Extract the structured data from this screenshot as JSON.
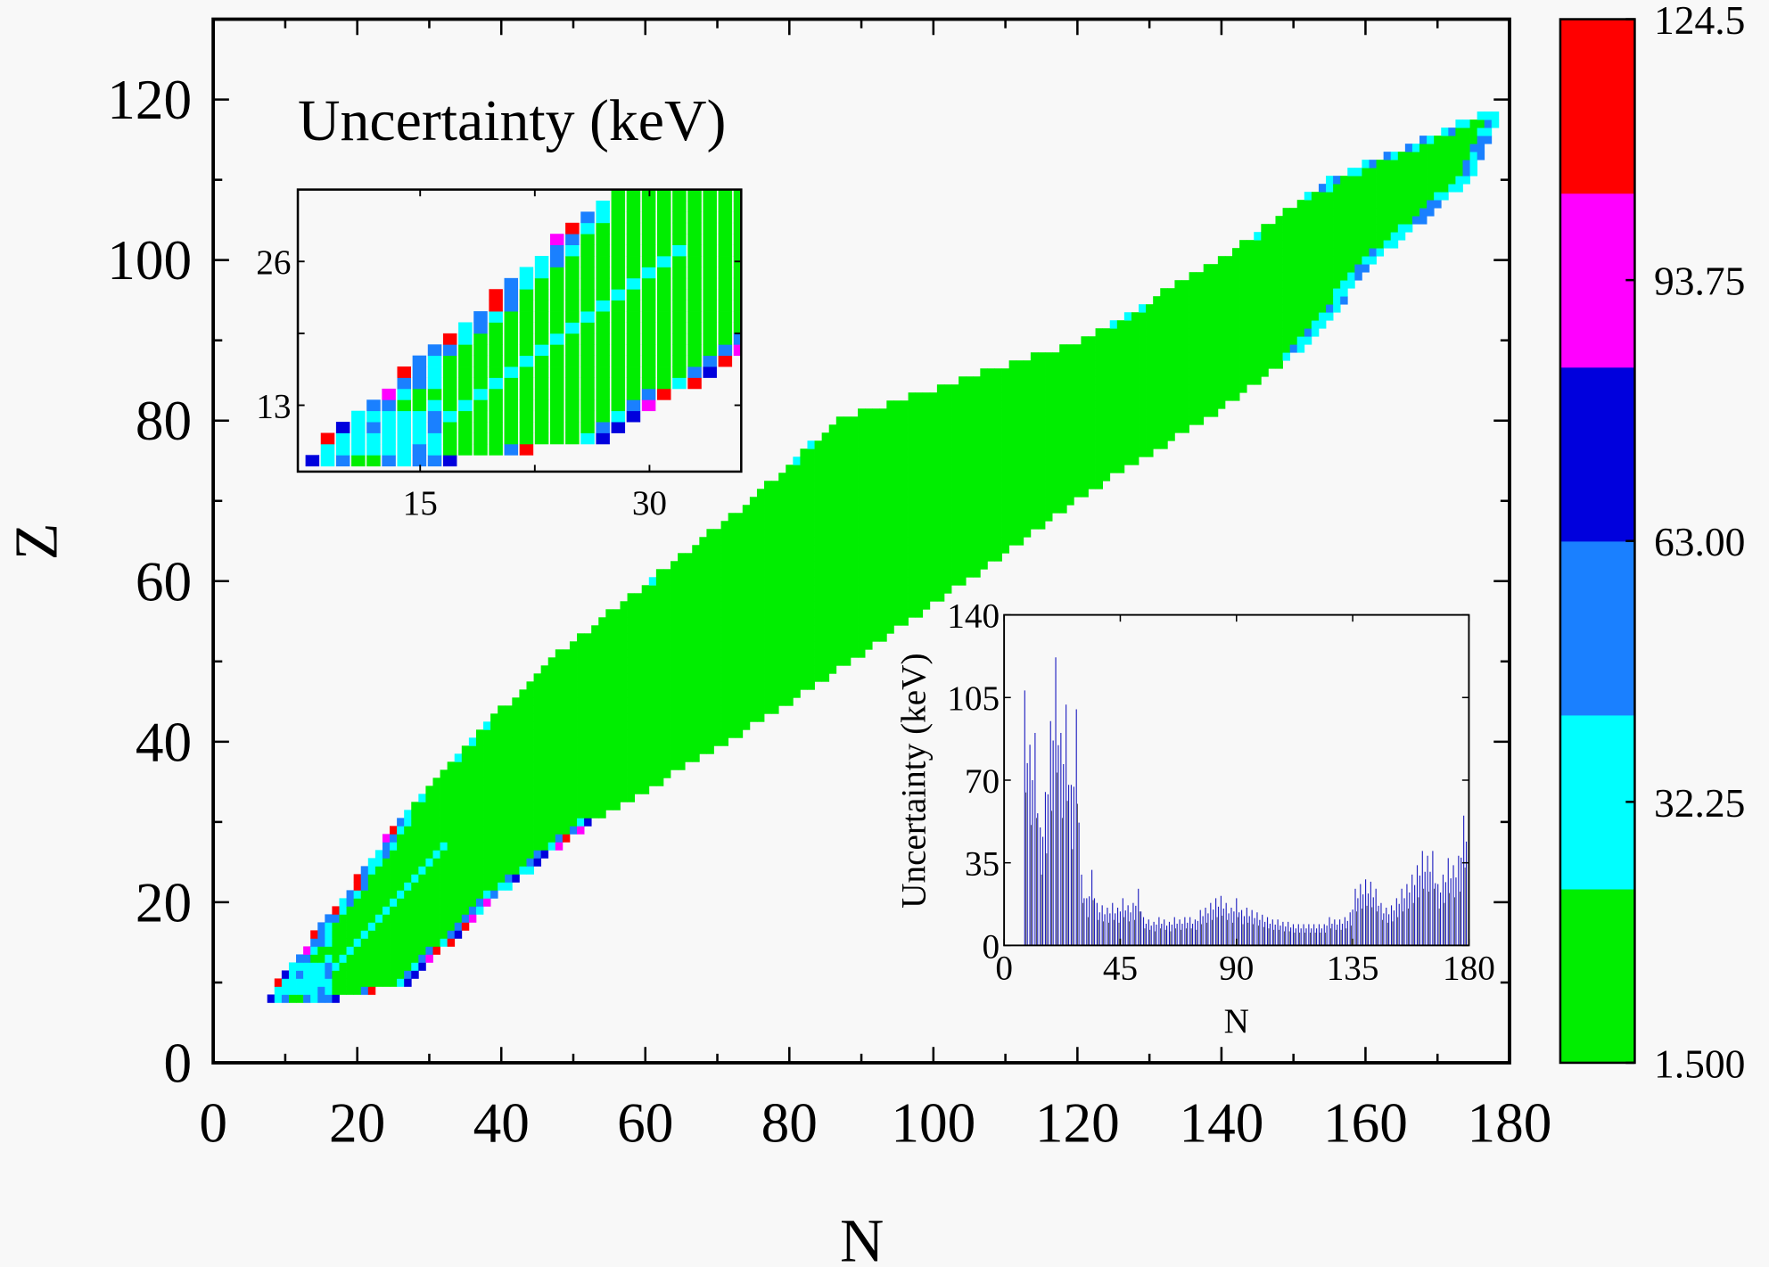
{
  "chart_data": [
    {
      "type": "heatmap",
      "title": "Uncertainty (keV)",
      "xlabel": "N",
      "ylabel": "Z",
      "xlim": [
        0,
        180
      ],
      "ylim": [
        0,
        130
      ],
      "xticks": [
        "0",
        "20",
        "40",
        "60",
        "80",
        "100",
        "120",
        "140",
        "160",
        "180"
      ],
      "yticks": [
        "0",
        "20",
        "40",
        "60",
        "80",
        "100",
        "120"
      ],
      "grid": false,
      "colorbar": {
        "range": [
          1.5,
          124.5
        ],
        "tick_labels": [
          "1.500",
          "32.25",
          "63.00",
          "93.75",
          "124.5"
        ],
        "tick_values": [
          1.5,
          32.25,
          63.0,
          93.75,
          124.5
        ],
        "colors": [
          "#00ee00",
          "#00ffff",
          "#1a80ff",
          "#0000dd",
          "#ff00ff",
          "#ff0000"
        ]
      },
      "region_edges": {
        "z": [
          8,
          10,
          20,
          30,
          40,
          50,
          60,
          70,
          80,
          90,
          100,
          110,
          118
        ],
        "n_min": [
          8,
          9,
          18,
          26,
          36,
          47,
          61,
          75,
          87,
          121,
          140,
          155,
          176
        ],
        "n_max": [
          17,
          27,
          38,
          52,
          71,
          88,
          104,
          119,
          137,
          152,
          161,
          174,
          178
        ]
      },
      "typical_value_keV": 10
    },
    {
      "type": "heatmap",
      "inset": "top-left",
      "xlim": [
        7,
        36
      ],
      "ylim": [
        7,
        32.5
      ],
      "xticks": [
        "15",
        "30"
      ],
      "yticks": [
        "13",
        "26"
      ]
    },
    {
      "type": "bar",
      "inset": "bottom-right",
      "xlabel": "N",
      "ylabel": "Uncertainty (keV)",
      "xlim": [
        0,
        180
      ],
      "ylim": [
        0,
        140
      ],
      "xticks": [
        "0",
        "45",
        "90",
        "135",
        "180"
      ],
      "yticks": [
        "0",
        "35",
        "70",
        "105",
        "140"
      ],
      "color": "#2020c0",
      "x": [
        8,
        10,
        12,
        14,
        16,
        18,
        20,
        22,
        24,
        26,
        28,
        30,
        32,
        34,
        36,
        38,
        40,
        42,
        44,
        46,
        48,
        50,
        52,
        54,
        56,
        58,
        60,
        62,
        64,
        66,
        68,
        70,
        72,
        74,
        76,
        78,
        80,
        82,
        84,
        86,
        88,
        90,
        92,
        94,
        96,
        98,
        100,
        102,
        104,
        106,
        108,
        110,
        112,
        114,
        116,
        118,
        120,
        122,
        124,
        126,
        128,
        130,
        132,
        134,
        136,
        138,
        140,
        142,
        144,
        146,
        148,
        150,
        152,
        154,
        156,
        158,
        160,
        162,
        164,
        166,
        168,
        170,
        172,
        174,
        176,
        178
      ],
      "values": [
        108,
        85,
        90,
        50,
        65,
        95,
        122,
        90,
        102,
        68,
        100,
        30,
        20,
        32,
        18,
        17,
        16,
        18,
        16,
        20,
        17,
        18,
        24,
        12,
        11,
        10,
        12,
        11,
        10,
        12,
        11,
        12,
        12,
        11,
        15,
        16,
        18,
        20,
        21,
        18,
        16,
        20,
        15,
        16,
        15,
        14,
        13,
        12,
        11,
        11,
        10,
        10,
        9,
        9,
        9,
        9,
        9,
        9,
        9,
        12,
        11,
        11,
        12,
        14,
        24,
        26,
        28,
        27,
        24,
        18,
        16,
        17,
        20,
        24,
        26,
        30,
        34,
        40,
        38,
        40,
        26,
        30,
        37,
        34,
        38,
        55
      ]
    }
  ]
}
